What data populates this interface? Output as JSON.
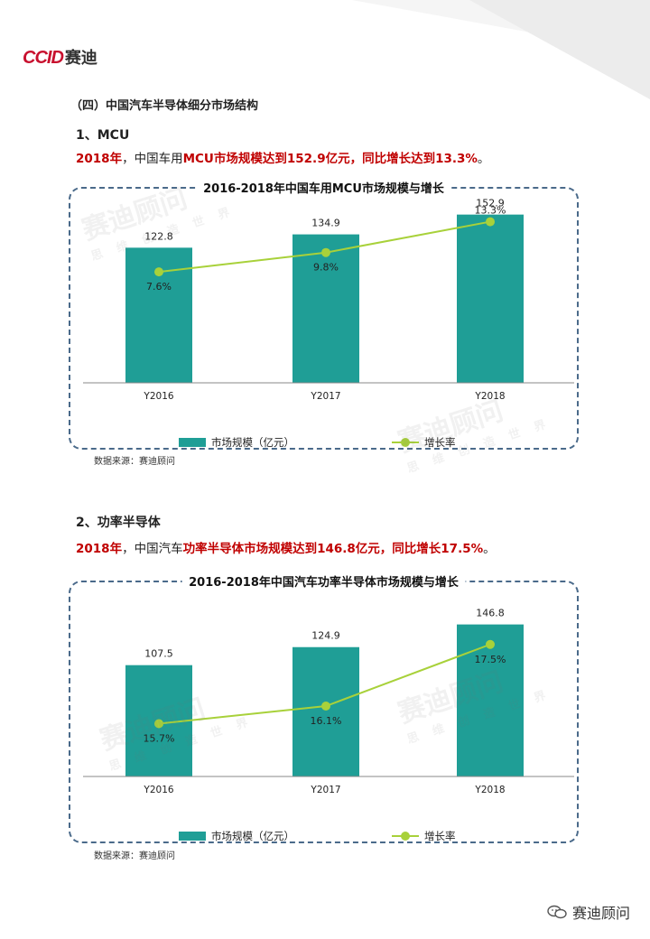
{
  "logo": {
    "ccid": "CCID",
    "cn": "赛迪"
  },
  "section_title": "（四）中国汽车半导体细分市场结构",
  "watermark_text": "赛迪顾问",
  "watermark_sub": "思 维 创 造 世 界",
  "mcu": {
    "heading": "1、MCU",
    "summary_year": "2018年",
    "summary_mid": "，中国车用",
    "summary_hl1": "MCU市场规模达到152.9亿元，同比增长达到13.3%",
    "summary_end": "。",
    "source": "数据来源：赛迪顾问"
  },
  "power": {
    "heading": "2、功率半导体",
    "summary_year": "2018年",
    "summary_mid": "，中国汽车",
    "summary_hl1": "功率半导体市场规模达到146.8亿元，同比增长17.5%",
    "summary_end": "。",
    "source": "数据来源：赛迪顾问"
  },
  "footer": {
    "wechat_label": "赛迪顾问"
  },
  "colors": {
    "bar": "#1f9e96",
    "line": "#a8d13a",
    "highlight": "#c00000",
    "frame": "#4a6a8a"
  },
  "chart_data": [
    {
      "type": "bar",
      "title": "2016-2018年中国车用MCU市场规模与增长",
      "categories": [
        "Y2016",
        "Y2017",
        "Y2018"
      ],
      "series": [
        {
          "name": "市场规模（亿元）",
          "type": "bar",
          "values": [
            122.8,
            134.9,
            152.9
          ]
        },
        {
          "name": "增长率",
          "type": "line",
          "values": [
            7.6,
            9.8,
            13.3
          ],
          "labels": [
            "7.6%",
            "9.8%",
            "13.3%"
          ]
        }
      ],
      "ylim": [
        0,
        160
      ],
      "y2lim": [
        -5,
        15
      ],
      "grid": false,
      "legend_placement": "bottom"
    },
    {
      "type": "bar",
      "title": "2016-2018年中国汽车功率半导体市场规模与增长",
      "categories": [
        "Y2016",
        "Y2017",
        "Y2018"
      ],
      "series": [
        {
          "name": "市场规模（亿元）",
          "type": "bar",
          "values": [
            107.5,
            124.9,
            146.8
          ]
        },
        {
          "name": "增长率",
          "type": "line",
          "values": [
            15.7,
            16.1,
            17.5
          ],
          "labels": [
            "15.7%",
            "16.1%",
            "17.5%"
          ]
        }
      ],
      "ylim": [
        0,
        170
      ],
      "y2lim": [
        14.5,
        18.5
      ],
      "grid": false,
      "legend_placement": "bottom"
    }
  ]
}
